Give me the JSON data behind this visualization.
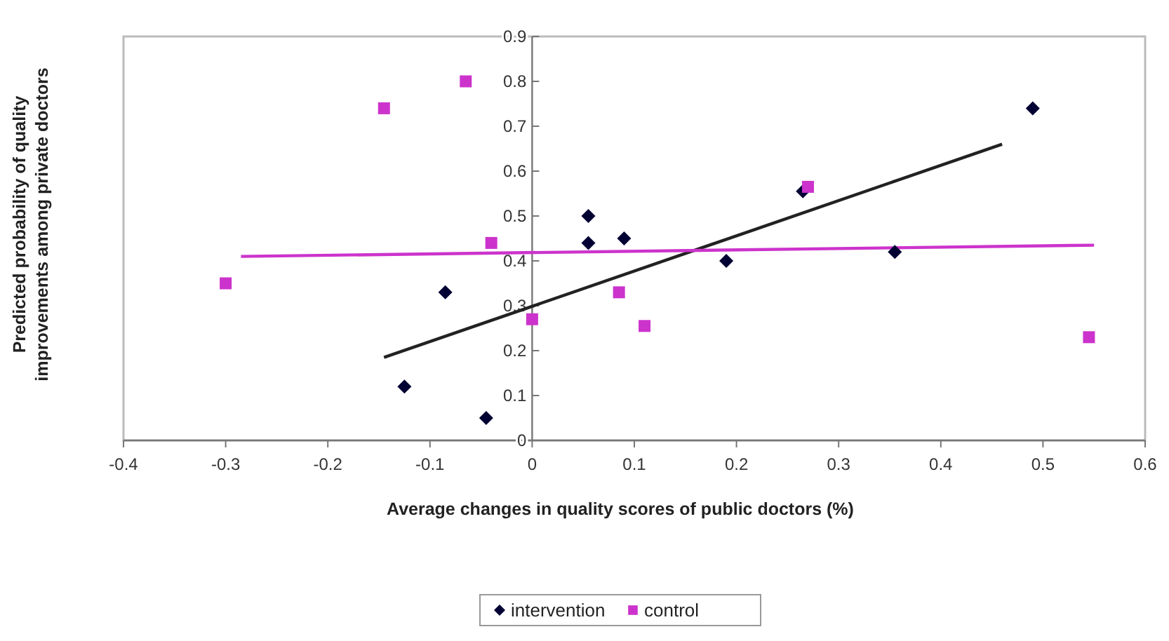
{
  "chart_data": {
    "type": "scatter",
    "xlabel": "Average changes in quality scores of public doctors (%)",
    "ylabel": "Predicted probability of quality\nimprovements among private doctors",
    "xlim": [
      -0.4,
      0.6
    ],
    "ylim": [
      0,
      0.9
    ],
    "xticks": [
      -0.4,
      -0.3,
      -0.2,
      -0.1,
      0,
      0.1,
      0.2,
      0.3,
      0.4,
      0.5,
      0.6
    ],
    "yticks": [
      0,
      0.1,
      0.2,
      0.3,
      0.4,
      0.5,
      0.6,
      0.7,
      0.8,
      0.9
    ],
    "grid": false,
    "legend": "bottom",
    "series": [
      {
        "name": "intervention",
        "type": "scatter",
        "marker": "diamond",
        "color": "#000033",
        "x": [
          -0.125,
          -0.085,
          -0.045,
          0.055,
          0.055,
          0.09,
          0.19,
          0.265,
          0.355,
          0.49
        ],
        "values": [
          0.12,
          0.33,
          0.05,
          0.5,
          0.44,
          0.45,
          0.4,
          0.555,
          0.42,
          0.74
        ]
      },
      {
        "name": "control",
        "type": "scatter",
        "marker": "square",
        "color": "#cc33cc",
        "x": [
          -0.3,
          -0.145,
          -0.065,
          -0.04,
          0,
          0.085,
          0.11,
          0.27,
          0.545
        ],
        "values": [
          0.35,
          0.74,
          0.8,
          0.44,
          0.27,
          0.33,
          0.255,
          0.565,
          0.23
        ]
      },
      {
        "type": "line",
        "marker": "none",
        "color": "#222222",
        "x": [
          -0.145,
          0.46
        ],
        "values": [
          0.185,
          0.66
        ]
      },
      {
        "type": "line",
        "marker": "none",
        "color": "#cc33cc",
        "x": [
          -0.285,
          0.55
        ],
        "values": [
          0.41,
          0.435
        ]
      }
    ]
  }
}
